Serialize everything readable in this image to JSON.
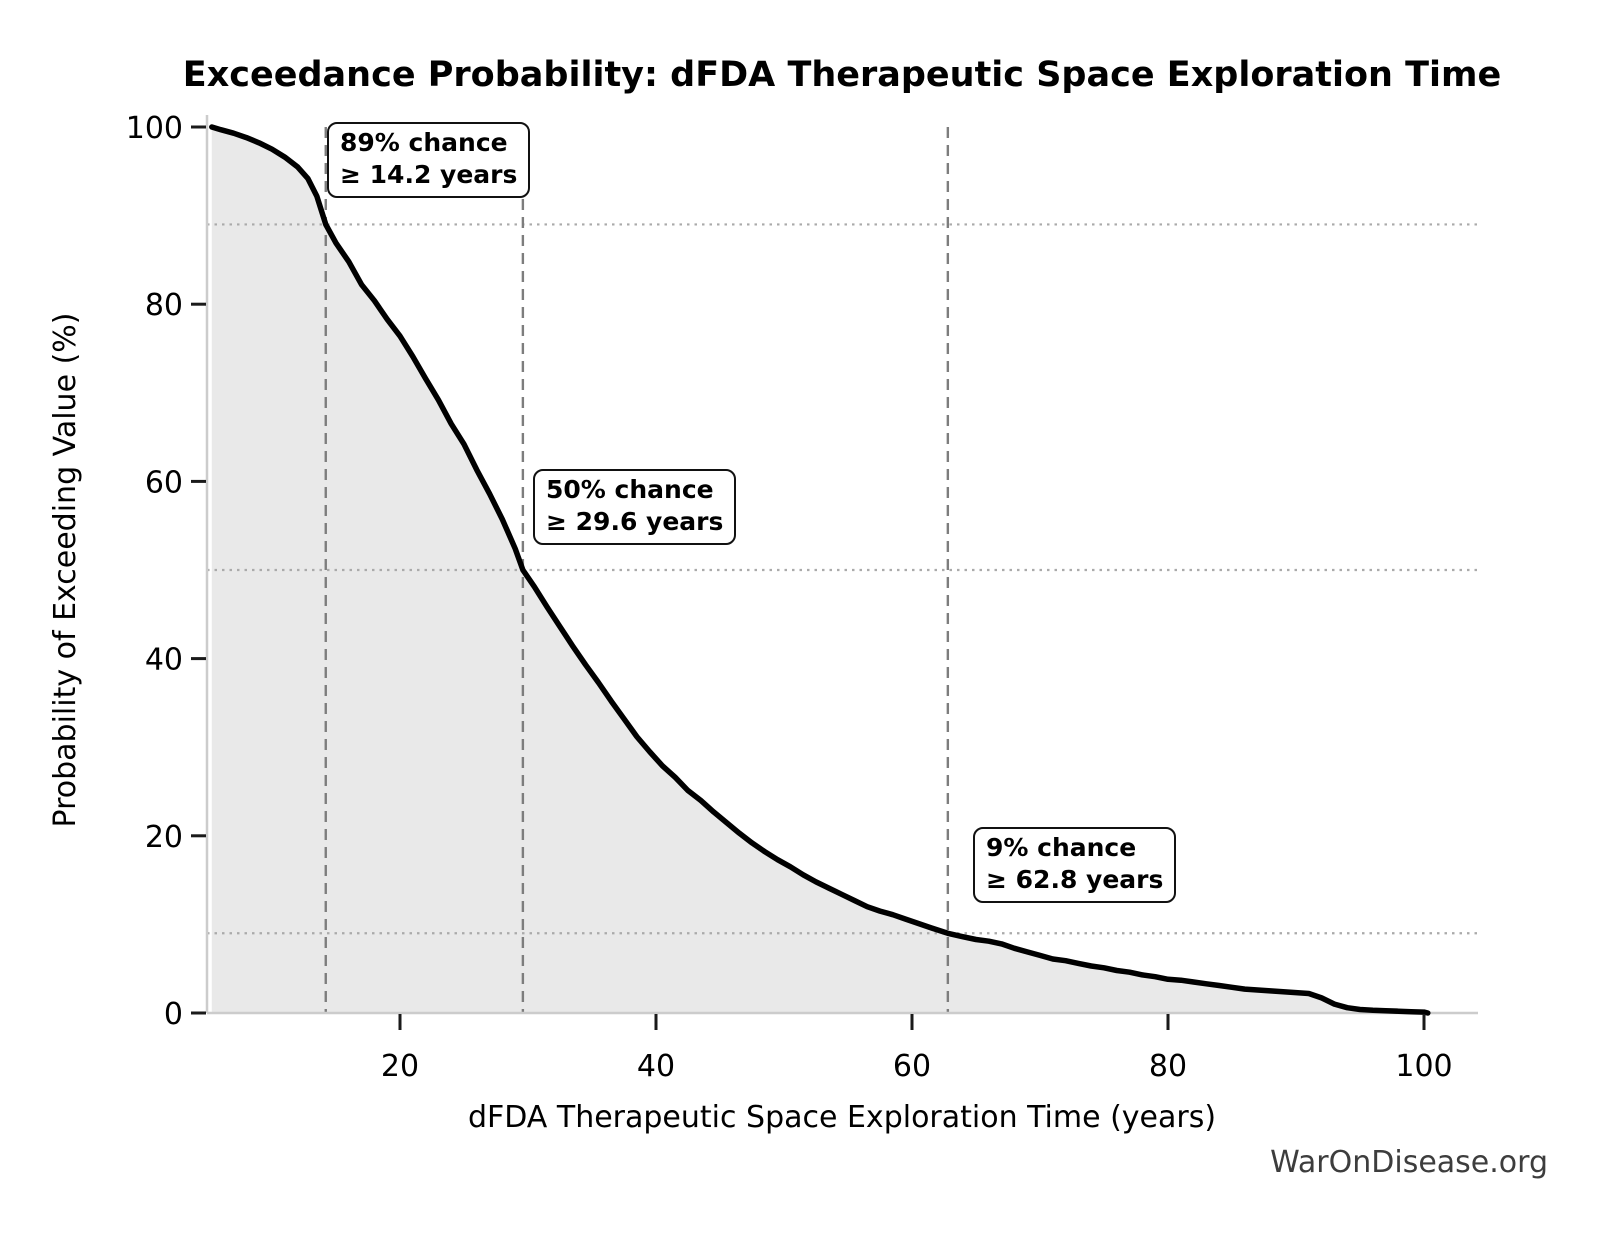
{
  "page": {
    "watermark": "WarOnDisease.org"
  },
  "chart_data": {
    "type": "area",
    "title": "Exceedance Probability: dFDA Therapeutic Space Exploration Time",
    "xlabel": "dFDA Therapeutic Space Exploration Time (years)",
    "ylabel": "Probability of Exceeding Value (%)",
    "x_ticks": [
      20,
      40,
      60,
      80,
      100
    ],
    "y_ticks": [
      0,
      20,
      40,
      60,
      80,
      100
    ],
    "xlim": [
      5.0,
      104.5
    ],
    "ylim": [
      0,
      100
    ],
    "grid": "off (reference lines only)",
    "legend": "none",
    "series": [
      {
        "name": "exceedance-curve",
        "points": [
          [
            5.3,
            100
          ],
          [
            6,
            99.7
          ],
          [
            7,
            99.3
          ],
          [
            8,
            98.8
          ],
          [
            9,
            98.2
          ],
          [
            10,
            97.5
          ],
          [
            11,
            96.6
          ],
          [
            12,
            95.5
          ],
          [
            12.8,
            94.2
          ],
          [
            13.5,
            92.2
          ],
          [
            14.2,
            89
          ],
          [
            15,
            86.9
          ],
          [
            16,
            84.8
          ],
          [
            17,
            82.2
          ],
          [
            18,
            80.4
          ],
          [
            19,
            78.3
          ],
          [
            20,
            76.4
          ],
          [
            21,
            74.1
          ],
          [
            22,
            71.6
          ],
          [
            23,
            69.2
          ],
          [
            24,
            66.5
          ],
          [
            25,
            64.2
          ],
          [
            26,
            61.3
          ],
          [
            27,
            58.6
          ],
          [
            28,
            55.7
          ],
          [
            29,
            52.4
          ],
          [
            29.6,
            50
          ],
          [
            30.5,
            48.1
          ],
          [
            31.5,
            45.8
          ],
          [
            32.5,
            43.6
          ],
          [
            33.5,
            41.4
          ],
          [
            34.5,
            39.3
          ],
          [
            35.5,
            37.3
          ],
          [
            36.5,
            35.2
          ],
          [
            37.5,
            33.2
          ],
          [
            38.5,
            31.2
          ],
          [
            39.5,
            29.5
          ],
          [
            40.5,
            27.9
          ],
          [
            41.5,
            26.6
          ],
          [
            42.5,
            25.1
          ],
          [
            43.5,
            24
          ],
          [
            44.5,
            22.7
          ],
          [
            45.5,
            21.5
          ],
          [
            46.5,
            20.3
          ],
          [
            47.5,
            19.2
          ],
          [
            48.5,
            18.2
          ],
          [
            49.5,
            17.3
          ],
          [
            50.5,
            16.5
          ],
          [
            51.5,
            15.6
          ],
          [
            52.5,
            14.8
          ],
          [
            53.5,
            14.1
          ],
          [
            54.5,
            13.4
          ],
          [
            55.5,
            12.7
          ],
          [
            56.5,
            12
          ],
          [
            57.5,
            11.5
          ],
          [
            58.5,
            11.1
          ],
          [
            59.5,
            10.6
          ],
          [
            60.5,
            10.1
          ],
          [
            61.5,
            9.6
          ],
          [
            62.8,
            9
          ],
          [
            64,
            8.6
          ],
          [
            65,
            8.3
          ],
          [
            66,
            8.1
          ],
          [
            67,
            7.8
          ],
          [
            68,
            7.3
          ],
          [
            69,
            6.9
          ],
          [
            70,
            6.5
          ],
          [
            71,
            6.1
          ],
          [
            72,
            5.9
          ],
          [
            73,
            5.6
          ],
          [
            74,
            5.3
          ],
          [
            75,
            5.1
          ],
          [
            76,
            4.8
          ],
          [
            77,
            4.6
          ],
          [
            78,
            4.3
          ],
          [
            79,
            4.1
          ],
          [
            80,
            3.8
          ],
          [
            81,
            3.7
          ],
          [
            82,
            3.5
          ],
          [
            83,
            3.3
          ],
          [
            84,
            3.1
          ],
          [
            85,
            2.9
          ],
          [
            86,
            2.7
          ],
          [
            87,
            2.6
          ],
          [
            88,
            2.5
          ],
          [
            89,
            2.4
          ],
          [
            90,
            2.3
          ],
          [
            91,
            2.2
          ],
          [
            92,
            1.7
          ],
          [
            93,
            1.0
          ],
          [
            94,
            0.6
          ],
          [
            95,
            0.4
          ],
          [
            96,
            0.3
          ],
          [
            97,
            0.25
          ],
          [
            98,
            0.2
          ],
          [
            99,
            0.15
          ],
          [
            100,
            0.1
          ],
          [
            100.3,
            0
          ]
        ]
      }
    ],
    "annotations": [
      {
        "line1": "89% chance",
        "line2": "≥ 14.2 years",
        "probability_percent": 89,
        "years": 14.2
      },
      {
        "line1": "50% chance",
        "line2": "≥ 29.6 years",
        "probability_percent": 50,
        "years": 29.6
      },
      {
        "line1": "9% chance",
        "line2": "≥ 62.8 years",
        "probability_percent": 9,
        "years": 62.8
      }
    ]
  },
  "colors": {
    "curve": "#000000",
    "fill": "#e9e9e9",
    "dashed_line": "#7d7d7d",
    "dotted_line": "#aaaaaa",
    "spine": "#cccccc",
    "tick": "#1a1a1a",
    "text": "#000000",
    "watermark": "#3d3d3d"
  }
}
